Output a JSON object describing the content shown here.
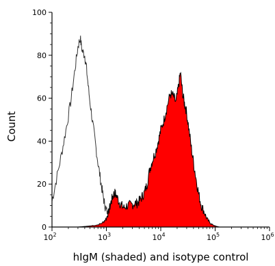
{
  "chart_data": {
    "type": "area",
    "title": "",
    "xlabel": "hIgM (shaded) and isotype control",
    "ylabel": "Count",
    "x_scale": "log",
    "xlim": [
      100,
      1000000
    ],
    "ylim": [
      0,
      100
    ],
    "x_ticks": [
      {
        "value": 100,
        "base": "10",
        "exp": "2"
      },
      {
        "value": 1000,
        "base": "10",
        "exp": "3"
      },
      {
        "value": 10000,
        "base": "10",
        "exp": "4"
      },
      {
        "value": 100000,
        "base": "10",
        "exp": "5"
      },
      {
        "value": 1000000,
        "base": "10",
        "exp": "6"
      }
    ],
    "y_ticks": [
      0,
      20,
      40,
      60,
      80,
      100
    ],
    "grid": false,
    "series": [
      {
        "role": "isotype control (outline)",
        "fill": "none",
        "stroke": "#333333",
        "x": [
          100,
          120,
          150,
          180,
          220,
          260,
          300,
          330,
          360,
          400,
          430,
          480,
          550,
          620,
          700,
          780,
          850,
          920,
          1000,
          1100,
          1200,
          1300,
          1400,
          1600,
          1800,
          2000,
          2500,
          3000,
          4000,
          6000,
          10000,
          20000,
          50000,
          100000,
          300000,
          1000000
        ],
        "y": [
          12,
          22,
          34,
          45,
          58,
          72,
          84,
          88,
          82,
          80,
          74,
          62,
          50,
          40,
          30,
          22,
          16,
          11,
          8,
          5,
          4,
          3,
          2,
          1.5,
          1,
          0.5,
          0.3,
          0.2,
          0.1,
          0.05,
          0.03,
          0.02,
          0,
          0,
          0,
          0
        ]
      },
      {
        "role": "hIgM (shaded)",
        "fill": "#ff0000",
        "stroke": "#000000",
        "x": [
          100,
          300,
          500,
          700,
          850,
          1000,
          1100,
          1200,
          1300,
          1400,
          1500,
          1700,
          1900,
          2100,
          2400,
          2800,
          3200,
          3600,
          4000,
          4500,
          5000,
          5600,
          6300,
          7000,
          8000,
          9000,
          10000,
          11500,
          13000,
          15000,
          17000,
          19000,
          21000,
          23000,
          25000,
          27000,
          29000,
          32000,
          36000,
          40000,
          45000,
          50000,
          56000,
          63000,
          70000,
          80000,
          90000,
          100000,
          120000,
          1000000
        ],
        "y": [
          0,
          0,
          0.5,
          1,
          2,
          4,
          7,
          11,
          14,
          16,
          15,
          12,
          10,
          9,
          10,
          10,
          11,
          11,
          12,
          14,
          16,
          20,
          27,
          31,
          35,
          40,
          45,
          50,
          56,
          62,
          61,
          58,
          65,
          72,
          63,
          58,
          55,
          48,
          38,
          30,
          22,
          15,
          10,
          7,
          4,
          2,
          1,
          0.5,
          0,
          0
        ]
      }
    ]
  }
}
